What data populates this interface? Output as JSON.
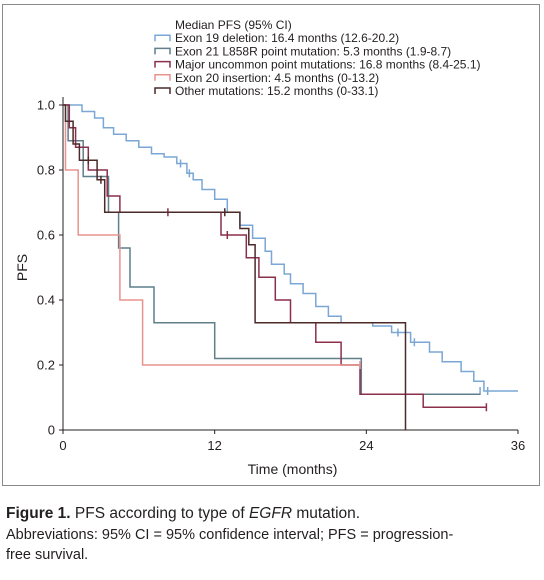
{
  "chart_data": {
    "type": "line",
    "step": true,
    "xlabel": "Time (months)",
    "ylabel": "PFS",
    "xlim": [
      0,
      36
    ],
    "ylim": [
      0,
      1.0
    ],
    "xticks": [
      "0",
      "12",
      "24",
      "36"
    ],
    "yticks": [
      "0",
      "0.2",
      "0.4",
      "0.6",
      "0.8",
      "1.0"
    ],
    "grid": false,
    "legend_title": "Median PFS (95% CI)",
    "legend_position": "top-right",
    "series": [
      {
        "name": "Exon 19 deletion: 16.4 months (12.6-20.2)",
        "color": "#7aa7d6",
        "steps": [
          [
            0,
            1.0
          ],
          [
            1.5,
            0.98
          ],
          [
            2.5,
            0.96
          ],
          [
            3.2,
            0.93
          ],
          [
            4.0,
            0.91
          ],
          [
            5.0,
            0.89
          ],
          [
            6.0,
            0.87
          ],
          [
            7.0,
            0.85
          ],
          [
            8.0,
            0.84
          ],
          [
            9.0,
            0.82
          ],
          [
            9.8,
            0.79
          ],
          [
            10.3,
            0.77
          ],
          [
            11.0,
            0.74
          ],
          [
            12.0,
            0.71
          ],
          [
            13.0,
            0.67
          ],
          [
            14.0,
            0.63
          ],
          [
            15.0,
            0.59
          ],
          [
            16.0,
            0.55
          ],
          [
            16.5,
            0.51
          ],
          [
            17.5,
            0.48
          ],
          [
            18.0,
            0.45
          ],
          [
            19.0,
            0.42
          ],
          [
            20.0,
            0.38
          ],
          [
            21.0,
            0.35
          ],
          [
            22.0,
            0.33
          ],
          [
            24.5,
            0.32
          ],
          [
            26.0,
            0.3
          ],
          [
            27.5,
            0.27
          ],
          [
            29.0,
            0.24
          ],
          [
            30.0,
            0.21
          ],
          [
            31.5,
            0.18
          ],
          [
            32.5,
            0.15
          ],
          [
            33.3,
            0.12
          ],
          [
            36,
            0.12
          ]
        ],
        "censored": [
          [
            9.3,
            0.82
          ],
          [
            10.0,
            0.79
          ],
          [
            26.5,
            0.3
          ],
          [
            27.8,
            0.27
          ],
          [
            33.0,
            0.12
          ],
          [
            33.6,
            0.12
          ]
        ]
      },
      {
        "name": "Exon 21 L858R point mutation: 5.3 months (1.9-8.7)",
        "color": "#5f7f8b",
        "steps": [
          [
            0,
            1.0
          ],
          [
            0.4,
            0.89
          ],
          [
            1.6,
            0.78
          ],
          [
            3.0,
            0.78
          ],
          [
            3.6,
            0.67
          ],
          [
            4.4,
            0.56
          ],
          [
            5.0,
            0.56
          ],
          [
            5.3,
            0.44
          ],
          [
            6.5,
            0.44
          ],
          [
            7.2,
            0.33
          ],
          [
            11.8,
            0.33
          ],
          [
            12.0,
            0.22
          ],
          [
            23.5,
            0.22
          ],
          [
            23.6,
            0.11
          ],
          [
            33.0,
            0.11
          ]
        ],
        "censored": []
      },
      {
        "name": "Major uncommon point mutations: 16.8 months (8.4-25.1)",
        "color": "#8c2f4b",
        "steps": [
          [
            0,
            1.0
          ],
          [
            0.5,
            0.93
          ],
          [
            1.0,
            0.87
          ],
          [
            2.0,
            0.8
          ],
          [
            3.5,
            0.72
          ],
          [
            4.5,
            0.67
          ],
          [
            8.0,
            0.67
          ],
          [
            12.5,
            0.6
          ],
          [
            14.5,
            0.53
          ],
          [
            15.5,
            0.47
          ],
          [
            16.8,
            0.4
          ],
          [
            18.0,
            0.33
          ],
          [
            20.0,
            0.27
          ],
          [
            22.0,
            0.2
          ],
          [
            23.5,
            0.11
          ],
          [
            27.0,
            0.11
          ],
          [
            28.5,
            0.07
          ],
          [
            33.5,
            0.07
          ]
        ],
        "censored": [
          [
            8.3,
            0.67
          ],
          [
            13.0,
            0.6
          ],
          [
            33.5,
            0.07
          ]
        ]
      },
      {
        "name": "Exon 20 insertion: 4.5 months (0-13.2)",
        "color": "#e8938f",
        "steps": [
          [
            0,
            1.0
          ],
          [
            0.2,
            0.8
          ],
          [
            1.2,
            0.6
          ],
          [
            4.0,
            0.6
          ],
          [
            4.5,
            0.4
          ],
          [
            6.0,
            0.4
          ],
          [
            6.3,
            0.2
          ],
          [
            23.5,
            0.2
          ]
        ],
        "censored": [
          [
            23.5,
            0.2
          ]
        ]
      },
      {
        "name": "Other mutations: 15.2 months (0-33.1)",
        "color": "#4c2a2a",
        "steps": [
          [
            0,
            1.0
          ],
          [
            0.2,
            0.95
          ],
          [
            0.8,
            0.88
          ],
          [
            1.3,
            0.83
          ],
          [
            2.2,
            0.83
          ],
          [
            2.7,
            0.77
          ],
          [
            3.3,
            0.67
          ],
          [
            12.5,
            0.67
          ],
          [
            13.5,
            0.67
          ],
          [
            14.0,
            0.62
          ],
          [
            14.7,
            0.57
          ],
          [
            15.2,
            0.33
          ],
          [
            27.0,
            0.33
          ],
          [
            27.1,
            0
          ]
        ],
        "censored": [
          [
            2.0,
            0.83
          ],
          [
            3.0,
            0.77
          ],
          [
            12.8,
            0.67
          ]
        ]
      }
    ]
  },
  "caption": {
    "label": "Figure 1.",
    "text_before": " PFS according to type of ",
    "italic": "EGFR",
    "text_after": " mutation.",
    "abbreviations_line1": "Abbreviations: 95% CI = 95% confidence interval; PFS = progression-",
    "abbreviations_line2": "free survival."
  }
}
